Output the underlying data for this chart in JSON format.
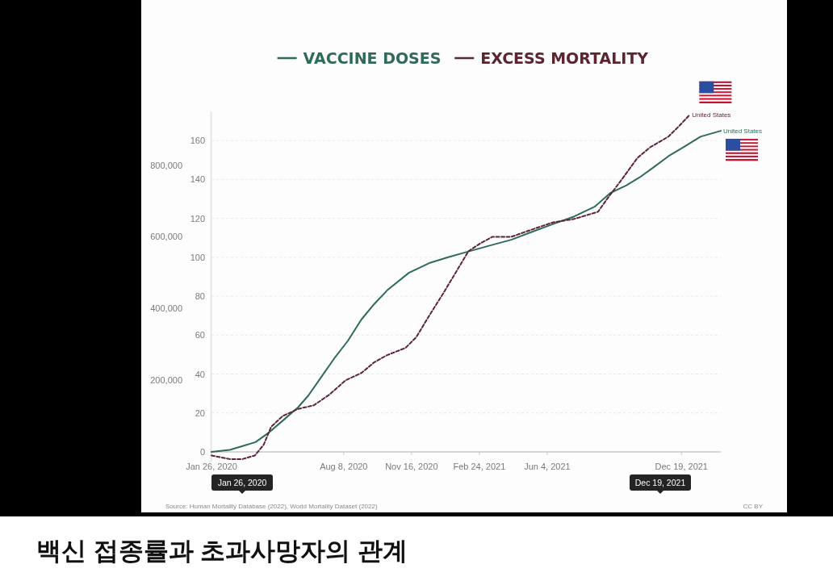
{
  "chart_data": {
    "type": "line",
    "title": "백신 접종률과 초과사망자의 관계",
    "legend": "top",
    "grid": "y",
    "xlim": [
      "2020-01-26",
      "2022-02-15"
    ],
    "xticks": [
      {
        "value": "2020-01-26",
        "label": "Jan 26, 2020"
      },
      {
        "value": "2020-08-08",
        "label": "Aug 8, 2020"
      },
      {
        "value": "2020-11-16",
        "label": "Nov 16, 2020"
      },
      {
        "value": "2021-02-24",
        "label": "Feb 24, 2021"
      },
      {
        "value": "2021-06-04",
        "label": "Jun 4, 2021"
      },
      {
        "value": "2021-12-19",
        "label": "Dec 19, 2021"
      }
    ],
    "ylim": [
      -5,
      175
    ],
    "yticks": [
      0,
      20,
      40,
      60,
      80,
      100,
      120,
      140,
      160
    ],
    "y2lim": [
      -27000,
      950000
    ],
    "y2ticks": [
      {
        "value": 200000,
        "label": "200,000"
      },
      {
        "value": 400000,
        "label": "400,000"
      },
      {
        "value": 600000,
        "label": "600,000"
      },
      {
        "value": 800000,
        "label": "800,000"
      }
    ],
    "series": [
      {
        "name": "VACCINE DOSES",
        "color": "#2f6b58",
        "line_style": "solid",
        "x": [
          "2020-01-26",
          "2020-02-22",
          "2020-03-12",
          "2020-03-31",
          "2020-04-20",
          "2020-05-10",
          "2020-06-02",
          "2020-06-17",
          "2020-07-07",
          "2020-07-25",
          "2020-08-14",
          "2020-09-03",
          "2020-09-22",
          "2020-10-11",
          "2020-11-12",
          "2020-12-12",
          "2021-01-09",
          "2021-02-08",
          "2021-03-11",
          "2021-04-12",
          "2021-05-12",
          "2021-06-12",
          "2021-07-14",
          "2021-08-13",
          "2021-09-05",
          "2021-09-29",
          "2021-10-18",
          "2021-11-07",
          "2021-11-30",
          "2021-12-24",
          "2022-01-16",
          "2022-02-15"
        ],
        "values": [
          0,
          1,
          3,
          5,
          10,
          16,
          23,
          29,
          39,
          48,
          57,
          68,
          76,
          83,
          92,
          97,
          100,
          103,
          106,
          109,
          113,
          117,
          121,
          126,
          133,
          137,
          141,
          146,
          152,
          157,
          162,
          165
        ]
      },
      {
        "name": "EXCESS MORTALITY",
        "color": "#5c2530",
        "line_style": "dashed",
        "axis": "y2",
        "x": [
          "2020-01-26",
          "2020-02-22",
          "2020-03-12",
          "2020-03-30",
          "2020-04-12",
          "2020-04-23",
          "2020-05-10",
          "2020-06-02",
          "2020-06-25",
          "2020-07-18",
          "2020-08-11",
          "2020-09-03",
          "2020-09-22",
          "2020-10-11",
          "2020-11-07",
          "2020-11-23",
          "2020-12-12",
          "2021-01-01",
          "2021-01-20",
          "2021-02-08",
          "2021-02-24",
          "2021-03-15",
          "2021-04-12",
          "2021-05-12",
          "2021-06-12",
          "2021-07-14",
          "2021-08-01",
          "2021-08-18",
          "2021-09-02",
          "2021-09-22",
          "2021-10-15",
          "2021-11-03",
          "2021-11-30",
          "2021-12-16",
          "2021-12-31"
        ],
        "values": [
          -10000,
          -20000,
          -20000,
          -10000,
          20000,
          70000,
          100000,
          120000,
          130000,
          160000,
          200000,
          220000,
          250000,
          270000,
          290000,
          320000,
          380000,
          440000,
          500000,
          560000,
          580000,
          600000,
          600000,
          620000,
          640000,
          650000,
          660000,
          670000,
          710000,
          760000,
          820000,
          850000,
          880000,
          910000,
          940000
        ]
      }
    ],
    "annotations": [
      {
        "text": "United States",
        "x": "2022-02-15",
        "y": 165
      },
      {
        "text": "United States",
        "x": "2021-12-31",
        "y": 173
      },
      "Source: Human Mortality Database (2022), World Mortality Dataset (2022)",
      "CC BY",
      "Jan 26, 2020",
      "Dec 19, 2021"
    ]
  }
}
